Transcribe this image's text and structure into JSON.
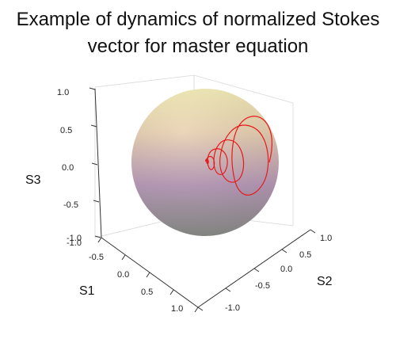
{
  "chart_data": {
    "type": "scatter3d-trajectory",
    "title_line1": "Example of dynamics of normalized Stokes",
    "title_line2": "vector for master equation",
    "axes": {
      "S1": {
        "label": "S1",
        "range": [
          -1.0,
          1.0
        ],
        "ticks": [
          "-1.0",
          "-0.5",
          "0.0",
          "0.5",
          "1.0"
        ]
      },
      "S2": {
        "label": "S2",
        "range": [
          -1.0,
          1.0
        ],
        "ticks": [
          "-1.0",
          "-0.5",
          "0.0",
          "0.5",
          "1.0"
        ]
      },
      "S3": {
        "label": "S3",
        "range": [
          -1.0,
          1.0
        ],
        "ticks": [
          "-1.0",
          "-0.5",
          "0.0",
          "0.5",
          "1.0"
        ]
      }
    },
    "sphere": {
      "radius": 1.0,
      "color_top": "#f3ecb4",
      "color_mid": "#c79aaf",
      "color_bottom": "#888b86"
    },
    "trajectory": {
      "color": "#e8191b",
      "description_points_S2_S3": [
        [
          0.95,
          0.05
        ],
        [
          0.85,
          0.42
        ],
        [
          0.62,
          0.48
        ],
        [
          0.52,
          0.12
        ],
        [
          0.62,
          -0.25
        ],
        [
          0.8,
          -0.22
        ],
        [
          0.88,
          0.1
        ],
        [
          0.78,
          0.38
        ],
        [
          0.55,
          0.35
        ],
        [
          0.45,
          0.05
        ],
        [
          0.52,
          -0.18
        ],
        [
          0.66,
          -0.12
        ],
        [
          0.7,
          0.1
        ],
        [
          0.6,
          0.22
        ],
        [
          0.44,
          0.16
        ],
        [
          0.4,
          0.0
        ],
        [
          0.46,
          -0.08
        ],
        [
          0.52,
          0.0
        ],
        [
          0.48,
          0.06
        ],
        [
          0.44,
          0.02
        ]
      ]
    },
    "grid": true
  }
}
